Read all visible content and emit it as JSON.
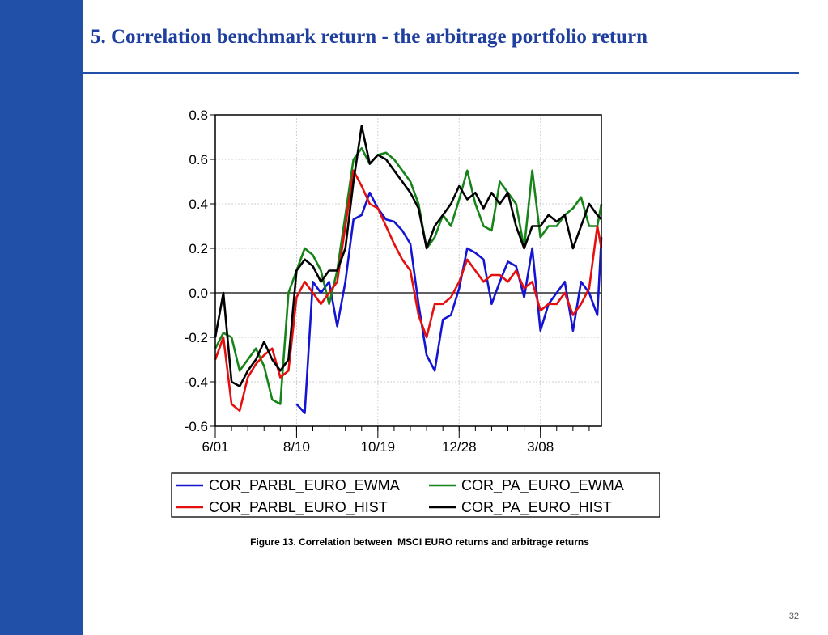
{
  "slide": {
    "title": "5. Correlation benchmark return - the arbitrage portfolio return",
    "caption": "Figure 13. Correlation between  MSCI EURO returns and arbitrage returns",
    "page_number": "32",
    "colors": {
      "sidebar": "#2150a8",
      "title": "#1f3f9f"
    }
  },
  "chart_data": {
    "type": "line",
    "title": "",
    "xlabel": "",
    "ylabel": "",
    "ylim": [
      -0.6,
      0.8
    ],
    "yticks": [
      0.8,
      0.6,
      0.4,
      0.2,
      0.0,
      -0.2,
      -0.4,
      -0.6
    ],
    "ytick_labels": [
      "0.8",
      "0.6",
      "0.4",
      "0.2",
      "0.0",
      "-0.2",
      "-0.4",
      "-0.6"
    ],
    "xlim": [
      0,
      95
    ],
    "xticks": [
      0,
      20,
      40,
      60,
      80
    ],
    "xtick_labels": [
      "6/01",
      "8/10",
      "10/19",
      "12/28",
      "3/08"
    ],
    "grid": true,
    "zero_line": true,
    "legend_position": "bottom",
    "x": [
      0,
      2,
      4,
      6,
      8,
      10,
      12,
      14,
      16,
      18,
      20,
      22,
      24,
      26,
      28,
      30,
      32,
      34,
      36,
      38,
      40,
      42,
      44,
      46,
      48,
      50,
      52,
      54,
      56,
      58,
      60,
      62,
      64,
      66,
      68,
      70,
      72,
      74,
      76,
      78,
      80,
      82,
      84,
      86,
      88,
      90,
      92,
      94,
      95
    ],
    "series": [
      {
        "name": "COR_PARBL_EURO_EWMA",
        "color": "#1414d2",
        "values": [
          null,
          null,
          null,
          null,
          null,
          null,
          null,
          null,
          null,
          null,
          -0.5,
          -0.54,
          0.05,
          0.0,
          0.05,
          -0.15,
          0.05,
          0.33,
          0.35,
          0.45,
          0.38,
          0.33,
          0.32,
          0.28,
          0.22,
          -0.05,
          -0.28,
          -0.35,
          -0.12,
          -0.1,
          0.02,
          0.2,
          0.18,
          0.15,
          -0.05,
          0.05,
          0.14,
          0.12,
          -0.02,
          0.2,
          -0.17,
          -0.05,
          0.0,
          0.05,
          -0.17,
          0.05,
          0.0,
          -0.1,
          0.25
        ]
      },
      {
        "name": "COR_PA_EURO_EWMA",
        "color": "#17841a",
        "values": [
          -0.25,
          -0.18,
          -0.2,
          -0.35,
          -0.3,
          -0.25,
          -0.33,
          -0.48,
          -0.5,
          0.0,
          0.1,
          0.2,
          0.17,
          0.1,
          -0.05,
          0.1,
          0.35,
          0.6,
          0.65,
          0.58,
          0.62,
          0.63,
          0.6,
          0.55,
          0.5,
          0.4,
          0.2,
          0.25,
          0.35,
          0.3,
          0.42,
          0.55,
          0.4,
          0.3,
          0.28,
          0.5,
          0.45,
          0.4,
          0.2,
          0.55,
          0.25,
          0.3,
          0.3,
          0.35,
          0.38,
          0.43,
          0.3,
          0.3,
          0.4
        ]
      },
      {
        "name": "COR_PARBL_EURO_HIST",
        "color": "#e41010",
        "values": [
          -0.3,
          -0.2,
          -0.5,
          -0.53,
          -0.38,
          -0.32,
          -0.28,
          -0.25,
          -0.38,
          -0.35,
          -0.02,
          0.05,
          0.0,
          -0.05,
          0.0,
          0.05,
          0.3,
          0.55,
          0.48,
          0.4,
          0.38,
          0.3,
          0.22,
          0.15,
          0.1,
          -0.1,
          -0.2,
          -0.05,
          -0.05,
          -0.02,
          0.05,
          0.15,
          0.1,
          0.05,
          0.08,
          0.08,
          0.05,
          0.1,
          0.02,
          0.05,
          -0.08,
          -0.05,
          -0.05,
          0.0,
          -0.1,
          -0.05,
          0.02,
          0.3,
          0.2
        ]
      },
      {
        "name": "COR_PA_EURO_HIST",
        "color": "#000000",
        "values": [
          -0.2,
          0.0,
          -0.4,
          -0.42,
          -0.35,
          -0.3,
          -0.22,
          -0.3,
          -0.35,
          -0.3,
          0.1,
          0.15,
          0.12,
          0.05,
          0.1,
          0.1,
          0.2,
          0.5,
          0.75,
          0.58,
          0.62,
          0.6,
          0.55,
          0.5,
          0.45,
          0.38,
          0.2,
          0.3,
          0.35,
          0.4,
          0.48,
          0.42,
          0.45,
          0.38,
          0.45,
          0.4,
          0.45,
          0.3,
          0.2,
          0.3,
          0.3,
          0.35,
          0.32,
          0.35,
          0.2,
          0.3,
          0.4,
          0.35,
          0.33
        ]
      }
    ]
  }
}
